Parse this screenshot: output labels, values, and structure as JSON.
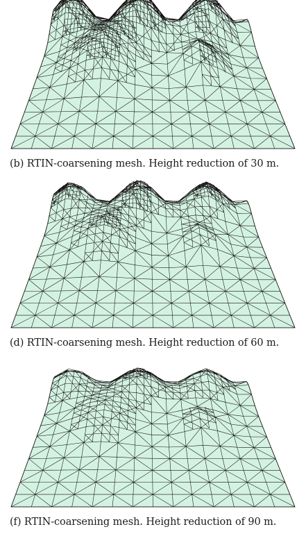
{
  "figures": [
    {
      "id": "b",
      "caption": "(b) RTIN-coarsening mesh. Height reduction of 30 m.",
      "mesh_fill": "#d4f2e2",
      "line_color": "#111111",
      "relief": 1.0
    },
    {
      "id": "d",
      "caption": "(d) RTIN-coarsening mesh. Height reduction of 60 m.",
      "mesh_fill": "#d4f2e2",
      "line_color": "#111111",
      "relief": 0.75
    },
    {
      "id": "f",
      "caption": "(f) RTIN-coarsening mesh. Height reduction of 90 m.",
      "mesh_fill": "#d4f2e2",
      "line_color": "#111111",
      "relief": 0.55
    }
  ]
}
